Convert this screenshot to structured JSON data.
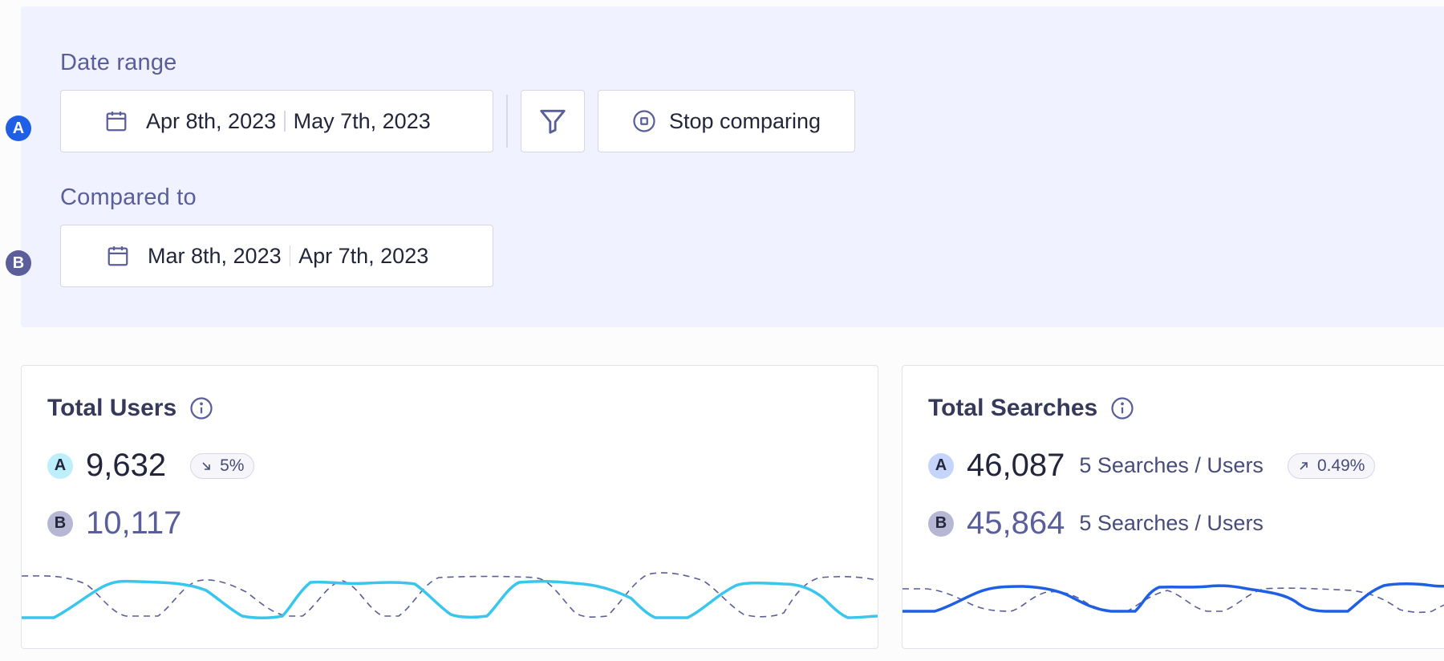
{
  "filters": {
    "date_range_label": "Date range",
    "compared_to_label": "Compared to",
    "range_a": {
      "badge": "A",
      "start": "Apr 8th, 2023",
      "end": "May 7th, 2023"
    },
    "range_b": {
      "badge": "B",
      "start": "Mar 8th, 2023",
      "end": "Apr 7th, 2023"
    },
    "stop_comparing_label": "Stop comparing"
  },
  "cards": [
    {
      "title": "Total Users",
      "a": {
        "badge": "A",
        "value": "9,632"
      },
      "b": {
        "badge": "B",
        "value": "10,117"
      },
      "change": {
        "direction": "down",
        "label": "5%"
      }
    },
    {
      "title": "Total Searches",
      "a": {
        "badge": "A",
        "value": "46,087",
        "ratio": "5 Searches / Users"
      },
      "b": {
        "badge": "B",
        "value": "45,864",
        "ratio": "5 Searches / Users"
      },
      "change": {
        "direction": "up",
        "label": "0.49%"
      }
    }
  ],
  "colors": {
    "panel_bg": "#f0f2ff",
    "accent_a": "#1f5fe6",
    "accent_b": "#5a5e9a",
    "users_line": "#38c6ec",
    "searches_line": "#1f5fe6",
    "comparison_line": "#5a5e9a"
  },
  "icons": [
    "calendar-icon",
    "filter-icon",
    "stop-icon",
    "info-icon",
    "arrow-down-right-icon",
    "arrow-up-right-icon"
  ]
}
